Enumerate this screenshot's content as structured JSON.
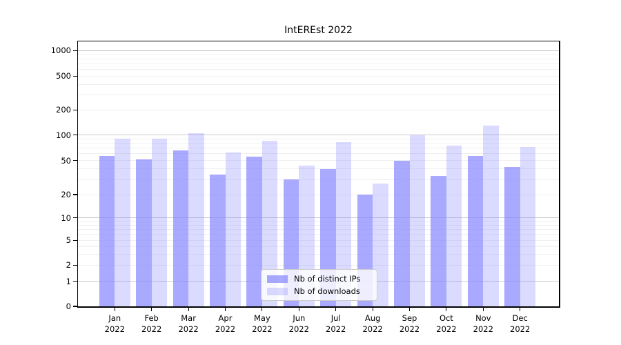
{
  "title": "IntEREst 2022",
  "colors": {
    "ips_bar": "rgba(136,136,255,0.72)",
    "downloads_bar": "rgba(136,136,255,0.30)",
    "major_grid": "#c9c9c9",
    "minor_grid": "#efefef",
    "axis": "#000000"
  },
  "y_axis": {
    "tick_labels": [
      "1000",
      "500",
      "200",
      "100",
      "50",
      "20",
      "10",
      "5",
      "2",
      "1",
      "0"
    ]
  },
  "x_axis": {
    "year": "2022",
    "months": [
      "Jan",
      "Feb",
      "Mar",
      "Apr",
      "May",
      "Jun",
      "Jul",
      "Aug",
      "Sep",
      "Oct",
      "Nov",
      "Dec"
    ]
  },
  "legend": {
    "items": [
      {
        "label": "Nb of distinct IPs",
        "swatch": "ips"
      },
      {
        "label": "Nb of downloads",
        "swatch": "downloads"
      }
    ]
  },
  "chart_data": {
    "type": "bar",
    "title": "IntEREst 2022",
    "categories": [
      "Jan 2022",
      "Feb 2022",
      "Mar 2022",
      "Apr 2022",
      "May 2022",
      "Jun 2022",
      "Jul 2022",
      "Aug 2022",
      "Sep 2022",
      "Oct 2022",
      "Nov 2022",
      "Dec 2022"
    ],
    "series": [
      {
        "name": "Nb of distinct IPs",
        "values": [
          57,
          52,
          66,
          34,
          56,
          30,
          40,
          20,
          50,
          33,
          57,
          42
        ]
      },
      {
        "name": "Nb of downloads",
        "values": [
          90,
          91,
          106,
          62,
          86,
          44,
          83,
          27,
          100,
          75,
          130,
          72
        ]
      }
    ],
    "xlabel": "",
    "ylabel": "",
    "yscale": "symlog",
    "y_ticks": [
      0,
      1,
      2,
      5,
      10,
      20,
      50,
      100,
      200,
      500,
      1000
    ],
    "ylim": [
      0,
      1300
    ],
    "grid": "horizontal",
    "legend_position": "lower center"
  }
}
